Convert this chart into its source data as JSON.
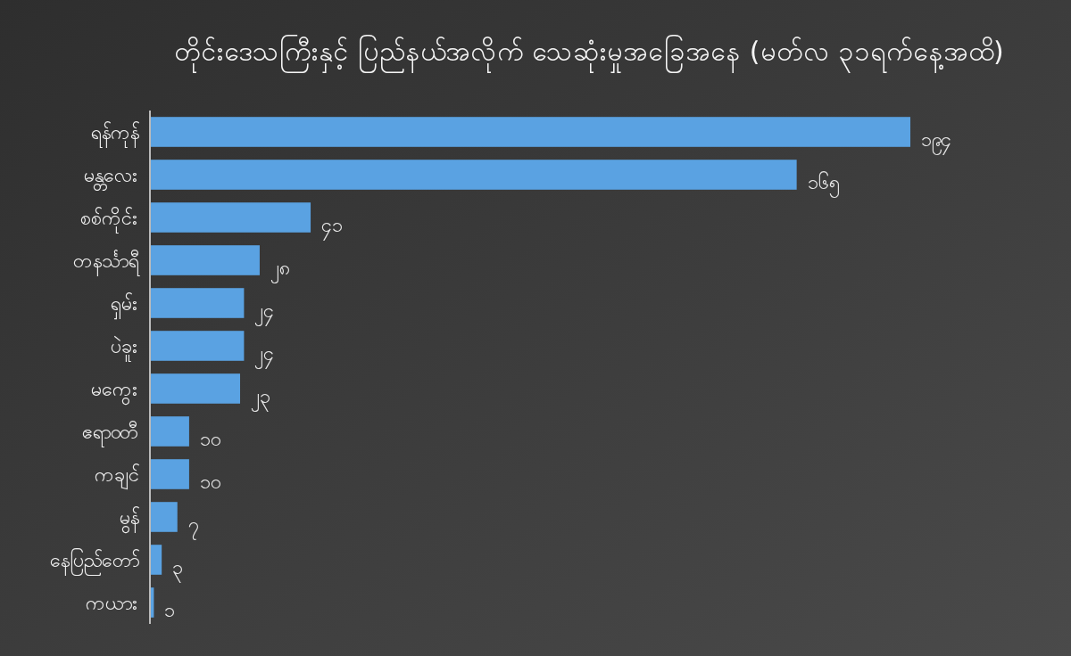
{
  "chart_data": {
    "type": "bar",
    "orientation": "horizontal",
    "title": "တိုင်းဒေသကြီးနှင့် ပြည်နယ်အလိုက် သေဆုံးမှုအခြေအနေ (မတ်လ ၃၁ရက်နေ့အထိ)",
    "categories": [
      "ရန်ကုန်",
      "မန္တလေး",
      "စစ်ကိုင်း",
      "တနင်္သာရီ",
      "ရှမ်း",
      "ပဲခူး",
      "မကွေး",
      "ဧရာဝတီ",
      "ကချင်",
      "မွန်",
      "နေပြည်တော်",
      "ကယား"
    ],
    "values": [
      194,
      165,
      41,
      28,
      24,
      24,
      23,
      10,
      10,
      7,
      3,
      1
    ],
    "value_labels": [
      "၁၉၄",
      "၁၆၅",
      "၄၁",
      "၂၈",
      "၂၄",
      "၂၄",
      "၂၃",
      "၁၀",
      "၁၀",
      "၇",
      "၃",
      "၁"
    ],
    "color": "#5aa2e2",
    "grid": false
  }
}
